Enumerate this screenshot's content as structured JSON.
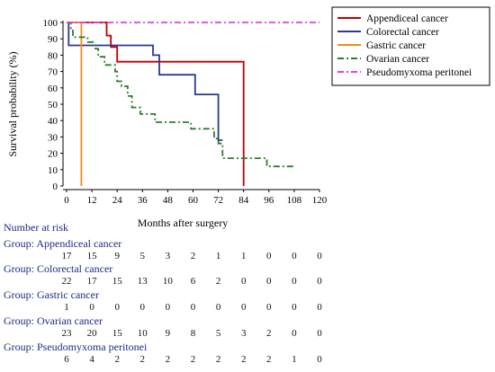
{
  "chart_data": {
    "type": "line",
    "subtype": "kaplan-meier-step",
    "xlabel": "Months after surgery",
    "ylabel": "Survival probability (%)",
    "xlim": [
      0,
      120
    ],
    "ylim": [
      0,
      100
    ],
    "xticks": [
      0,
      12,
      24,
      36,
      48,
      60,
      72,
      84,
      96,
      108,
      120
    ],
    "yticks": [
      0,
      10,
      20,
      30,
      40,
      50,
      60,
      70,
      80,
      90,
      100
    ],
    "grid": false,
    "legend_position": "top-right",
    "series": [
      {
        "name": "Appendiceal cancer",
        "color": "#c00000",
        "style": "solid",
        "points": [
          [
            0,
            100
          ],
          [
            19,
            100
          ],
          [
            19,
            92
          ],
          [
            21,
            92
          ],
          [
            21,
            85
          ],
          [
            24,
            85
          ],
          [
            24,
            76
          ],
          [
            84,
            76
          ],
          [
            84,
            0
          ]
        ]
      },
      {
        "name": "Colorectal cancer",
        "color": "#2b3990",
        "style": "solid",
        "points": [
          [
            0,
            100
          ],
          [
            1,
            100
          ],
          [
            1,
            86
          ],
          [
            41,
            86
          ],
          [
            41,
            80
          ],
          [
            44,
            80
          ],
          [
            44,
            68
          ],
          [
            61,
            68
          ],
          [
            61,
            56
          ],
          [
            72,
            56
          ],
          [
            72,
            28
          ],
          [
            74,
            28
          ]
        ]
      },
      {
        "name": "Gastric cancer",
        "color": "#f28a1c",
        "style": "solid",
        "points": [
          [
            0,
            100
          ],
          [
            7,
            100
          ],
          [
            7,
            0
          ]
        ]
      },
      {
        "name": "Ovarian cancer",
        "color": "#2e7d32",
        "style": "dashdot",
        "points": [
          [
            0,
            100
          ],
          [
            2,
            100
          ],
          [
            2,
            96
          ],
          [
            3,
            96
          ],
          [
            3,
            91
          ],
          [
            10,
            91
          ],
          [
            10,
            88
          ],
          [
            13,
            88
          ],
          [
            13,
            84
          ],
          [
            15,
            84
          ],
          [
            15,
            79
          ],
          [
            18,
            79
          ],
          [
            18,
            74
          ],
          [
            23,
            74
          ],
          [
            23,
            70
          ],
          [
            24,
            70
          ],
          [
            24,
            64
          ],
          [
            26,
            64
          ],
          [
            26,
            61
          ],
          [
            29,
            61
          ],
          [
            29,
            55
          ],
          [
            31,
            55
          ],
          [
            31,
            48
          ],
          [
            35,
            48
          ],
          [
            35,
            44
          ],
          [
            42,
            44
          ],
          [
            42,
            39
          ],
          [
            59,
            39
          ],
          [
            59,
            35
          ],
          [
            70,
            35
          ],
          [
            70,
            29
          ],
          [
            72,
            29
          ],
          [
            72,
            26
          ],
          [
            74,
            26
          ],
          [
            74,
            17
          ],
          [
            95,
            17
          ],
          [
            95,
            12
          ],
          [
            108,
            12
          ]
        ]
      },
      {
        "name": "Pseudomyxoma peritonei",
        "color": "#e040e0",
        "style": "dashdot",
        "points": [
          [
            0,
            100
          ],
          [
            120,
            100
          ]
        ]
      }
    ]
  },
  "risk_table": {
    "title": "Number at risk",
    "groups": [
      {
        "label": "Group: Appendiceal cancer",
        "values": [
          "17",
          "15",
          "9",
          "5",
          "3",
          "2",
          "1",
          "1",
          "0",
          "0",
          "0"
        ]
      },
      {
        "label": "Group: Colorectal cancer",
        "values": [
          "22",
          "17",
          "15",
          "13",
          "10",
          "6",
          "2",
          "0",
          "0",
          "0",
          "0"
        ]
      },
      {
        "label": "Group: Gastric cancer",
        "values": [
          "1",
          "0",
          "0",
          "0",
          "0",
          "0",
          "0",
          "0",
          "0",
          "0",
          "0"
        ]
      },
      {
        "label": "Group: Ovarian cancer",
        "values": [
          "23",
          "20",
          "15",
          "10",
          "9",
          "8",
          "5",
          "3",
          "2",
          "0",
          "0"
        ]
      },
      {
        "label": "Group: Pseudomyxoma peritonei",
        "values": [
          "6",
          "4",
          "2",
          "2",
          "2",
          "2",
          "2",
          "2",
          "2",
          "1",
          "0"
        ]
      }
    ]
  }
}
